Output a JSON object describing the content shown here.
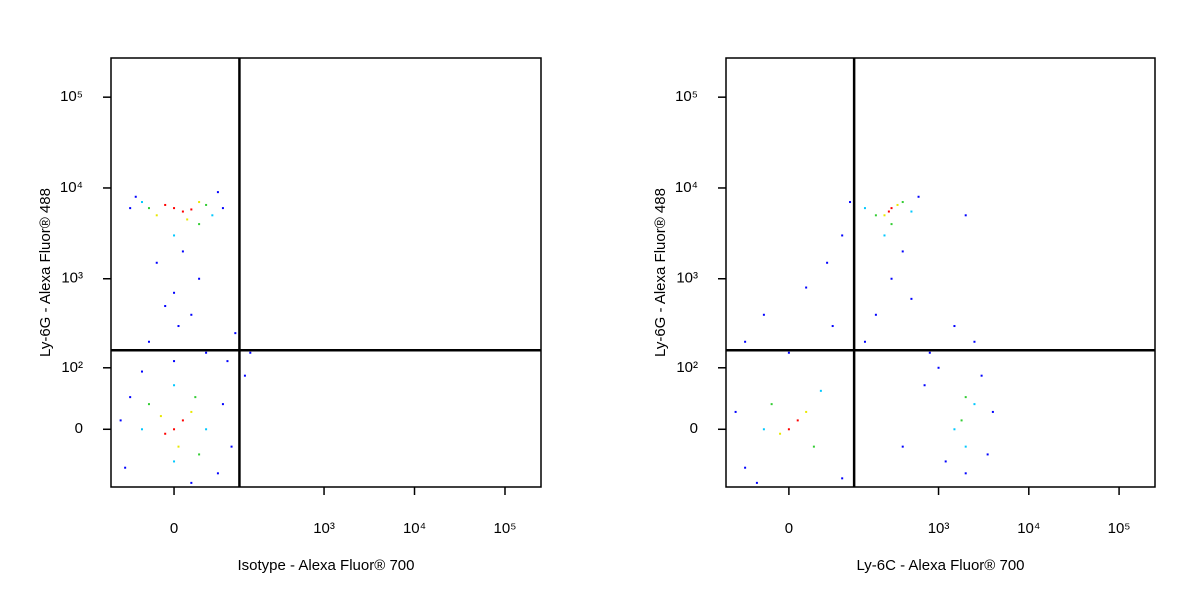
{
  "chart_data": [
    {
      "type": "scatter",
      "scale": "logicle",
      "x_label": "Isotype - Alexa Fluor® 700",
      "y_label": "Ly-6G - Alexa Fluor® 488",
      "xlim": [
        -105,
        250000
      ],
      "ylim": [
        -90,
        270000
      ],
      "xticks": [
        0,
        {
          "value": 1000,
          "label": "10³"
        },
        {
          "value": 10000,
          "label": "10⁴"
        },
        {
          "value": 100000,
          "label": "10⁵"
        }
      ],
      "yticks": [
        0,
        {
          "value": 100,
          "label": "10²"
        },
        {
          "value": 1000,
          "label": "10³"
        },
        {
          "value": 10000,
          "label": "10⁴"
        },
        {
          "value": 100000,
          "label": "10⁵"
        }
      ],
      "gates": {
        "x": 112,
        "y": 160
      },
      "series": [
        {
          "color": "#0000ff",
          "x": [
            -60,
            70,
            -50,
            60,
            10,
            -20,
            30,
            0,
            -10,
            20,
            5,
            -30,
            40,
            0,
            -60,
            70,
            -70,
            60,
            20,
            -40,
            80,
            130,
            150,
            100,
            -80,
            90
          ],
          "values": [
            6000,
            6000,
            8000,
            9000,
            2000,
            1500,
            1000,
            700,
            500,
            400,
            300,
            200,
            150,
            120,
            40,
            30,
            -50,
            -60,
            -80,
            90,
            120,
            80,
            150,
            250,
            10,
            -20
          ]
        },
        {
          "color": "#00c8ff",
          "x": [
            -40,
            50,
            0,
            -40,
            40,
            0,
            0
          ],
          "values": [
            7000,
            5000,
            3000,
            0,
            0,
            60,
            -40
          ]
        },
        {
          "color": "#32cd32",
          "x": [
            -30,
            40,
            30,
            -30,
            30,
            25
          ],
          "values": [
            6000,
            6500,
            4000,
            30,
            -30,
            40
          ]
        },
        {
          "color": "#e8e800",
          "x": [
            30,
            -20,
            15,
            20,
            -15,
            5
          ],
          "values": [
            7000,
            5000,
            4500,
            20,
            15,
            -20
          ]
        },
        {
          "color": "#ff0000",
          "x": [
            0,
            10,
            -10,
            20,
            0,
            10,
            -10
          ],
          "values": [
            6000,
            5500,
            6500,
            5800,
            0,
            10,
            -5
          ]
        }
      ]
    },
    {
      "type": "scatter",
      "scale": "logicle",
      "x_label": "Ly-6C - Alexa Fluor® 700",
      "y_label": "Ly-6G - Alexa Fluor® 488",
      "xlim": [
        -105,
        250000
      ],
      "ylim": [
        -90,
        270000
      ],
      "xticks": [
        0,
        {
          "value": 1000,
          "label": "10³"
        },
        {
          "value": 10000,
          "label": "10⁴"
        },
        {
          "value": 100000,
          "label": "10⁵"
        }
      ],
      "yticks": [
        0,
        {
          "value": 100,
          "label": "10²"
        },
        {
          "value": 1000,
          "label": "10³"
        },
        {
          "value": 10000,
          "label": "10⁴"
        },
        {
          "value": 100000,
          "label": "10⁵"
        }
      ],
      "gates": {
        "x": 112,
        "y": 160
      },
      "series": [
        {
          "color": "#0000ff",
          "x": [
            100,
            600,
            400,
            300,
            500,
            80,
            50,
            20,
            -30,
            -60,
            0,
            60,
            200,
            150,
            800,
            1500,
            2500,
            3000,
            4000,
            1200,
            2000,
            3500,
            700,
            400,
            -60,
            -80,
            80,
            2000,
            1000,
            -40
          ],
          "values": [
            7000,
            8000,
            2000,
            1000,
            600,
            3000,
            1500,
            800,
            400,
            200,
            150,
            300,
            400,
            200,
            150,
            300,
            200,
            80,
            20,
            -40,
            -60,
            -30,
            60,
            -20,
            -50,
            20,
            -70,
            5000,
            100,
            -80
          ]
        },
        {
          "color": "#00c8ff",
          "x": [
            150,
            500,
            250,
            -30,
            40,
            1500,
            2500,
            2000
          ],
          "values": [
            6000,
            5500,
            3000,
            0,
            50,
            0,
            30,
            -20
          ]
        },
        {
          "color": "#32cd32",
          "x": [
            200,
            400,
            300,
            -20,
            30,
            1800,
            2000
          ],
          "values": [
            5000,
            7000,
            4000,
            30,
            -20,
            10,
            40
          ]
        },
        {
          "color": "#e8e800",
          "x": [
            350,
            250,
            -10,
            20
          ],
          "values": [
            6500,
            5000,
            -5,
            20
          ]
        },
        {
          "color": "#ff0000",
          "x": [
            300,
            280,
            0,
            10
          ],
          "values": [
            6000,
            5500,
            0,
            10
          ]
        }
      ]
    }
  ]
}
